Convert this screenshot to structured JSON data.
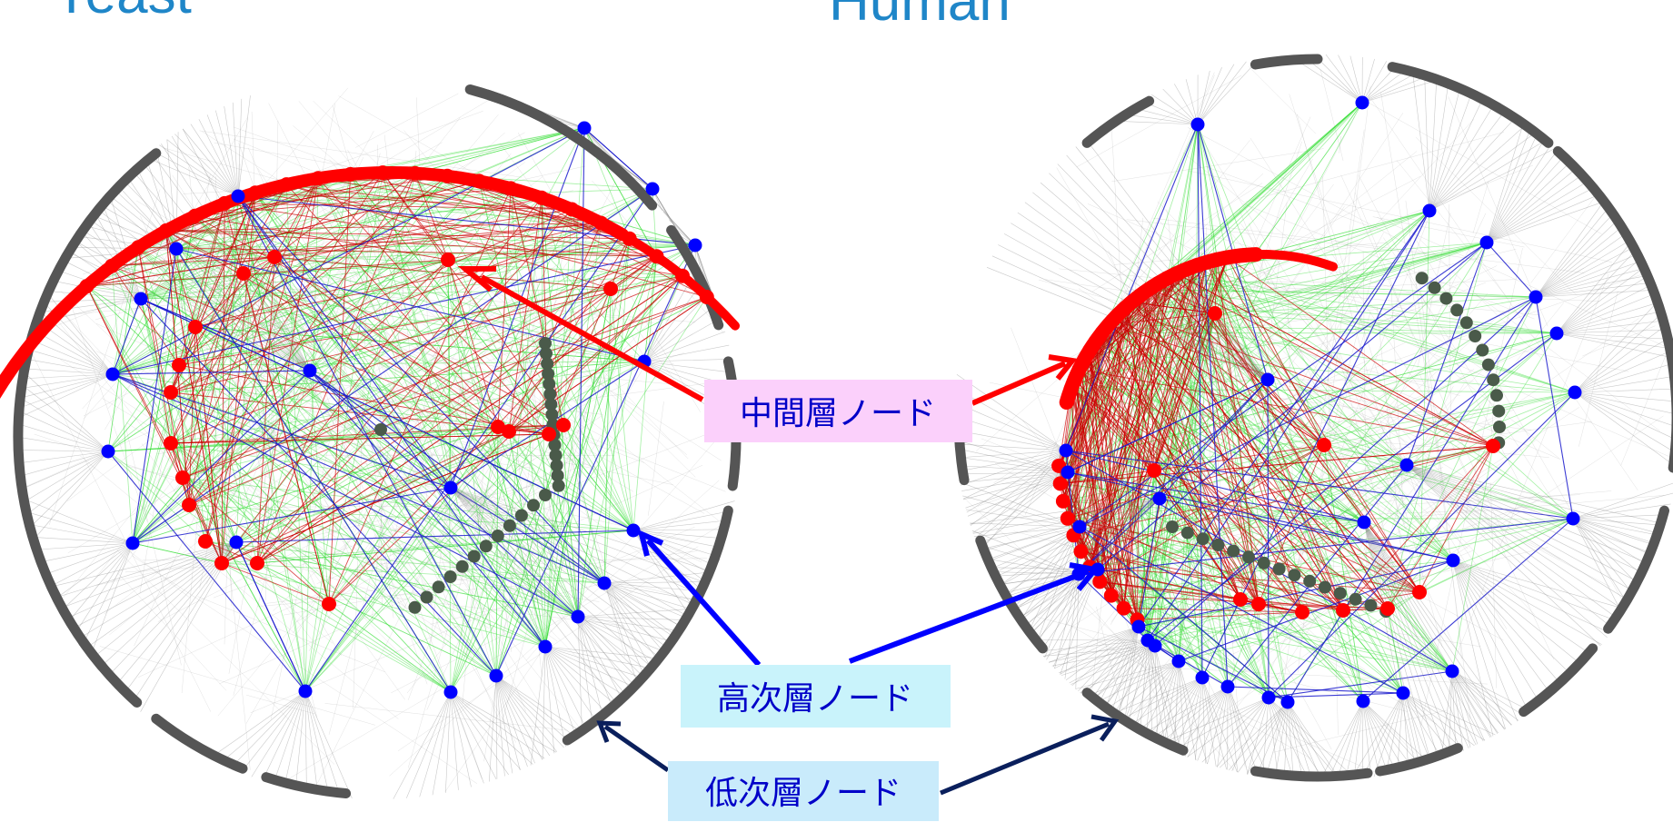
{
  "titles": {
    "left": "Yeast",
    "right": "Human"
  },
  "labels": {
    "middle": "中間層ノード",
    "high": "高次層ノード",
    "low": "低次層ノード"
  },
  "colors": {
    "title": "#1f86c8",
    "middle_node": "#ff0000",
    "high_node": "#0000ff",
    "low_node": "#555555",
    "middle_label_bg": "#fbd0fb",
    "high_label_bg": "#c9f3fb",
    "low_label_bg": "#c9ebfb",
    "label_text": "#0000c8",
    "arrow_middle": "#ff0000",
    "arrow_high": "#0000ff",
    "arrow_low": "#0a1f5c",
    "edge_red": "#cc0000",
    "edge_green": "#33dd33",
    "edge_blue": "#1a1acc",
    "edge_gray": "#888888"
  },
  "icons": {
    "arrow": "arrow-icon"
  }
}
